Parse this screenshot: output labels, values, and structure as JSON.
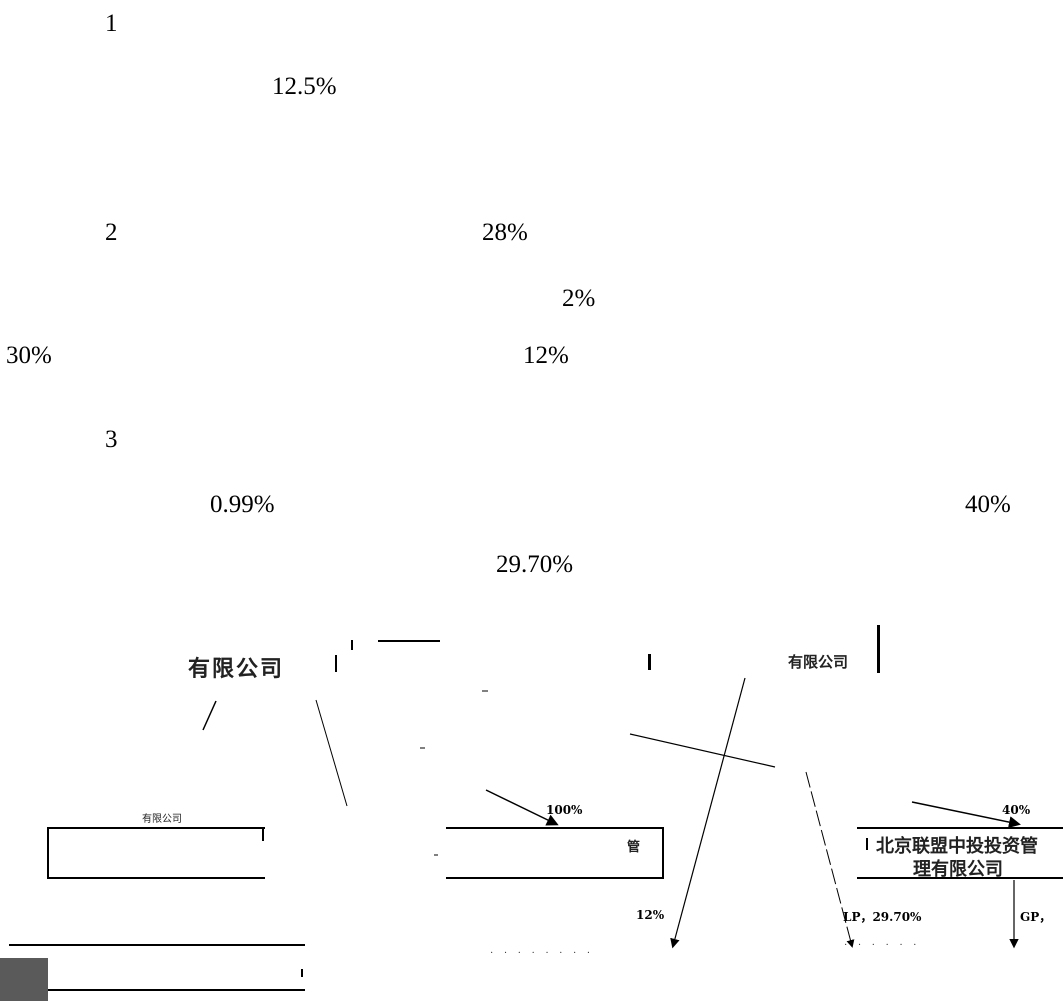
{
  "paragraphs": {
    "p1_number": "1",
    "p1_value": "12.5%",
    "p2_number": "2",
    "p2_value_a": "28%",
    "p2_value_b": "2%",
    "p2_value_c": "30%",
    "p2_value_d": "12%",
    "p3_number": "3",
    "p3_value_a": "0.99%",
    "p3_value_b": "40%",
    "p3_value_c": "29.70%"
  },
  "diagram": {
    "top_left_label": "有限公司",
    "top_right_label": "有限公司",
    "box_left_caption": "有限公司",
    "box_center_text": "管",
    "box_right_line1": "北京联盟中投投资管",
    "box_right_line2": "理有限公司",
    "pct_100": "100%",
    "pct_40": "40%",
    "pct_12": "12%",
    "pct_lp": "LP，29.70%",
    "pct_gp": "GP，"
  }
}
